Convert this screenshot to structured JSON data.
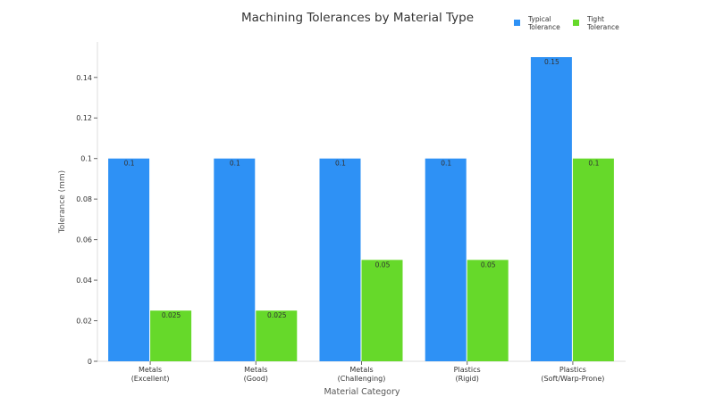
{
  "chart_data": {
    "type": "bar",
    "title": "Machining Tolerances by Material Type",
    "xlabel": "Material Category",
    "ylabel": "Tolerance (mm)",
    "categories": [
      [
        "Metals",
        "(Excellent)"
      ],
      [
        "Metals",
        "(Good)"
      ],
      [
        "Metals",
        "(Challenging)"
      ],
      [
        "Plastics",
        "(Rigid)"
      ],
      [
        "Plastics",
        "(Soft/Warp-Prone)"
      ]
    ],
    "series": [
      {
        "name": "Typical Tolerance",
        "legend_lines": [
          "Typical",
          "Tolerance"
        ],
        "color": "#2e91f5",
        "values": [
          0.1,
          0.1,
          0.1,
          0.1,
          0.15
        ],
        "labels": [
          "0.1",
          "0.1",
          "0.1",
          "0.1",
          "0.15"
        ]
      },
      {
        "name": "Tight Tolerance",
        "legend_lines": [
          "Tight",
          "Tolerance"
        ],
        "color": "#66d92a",
        "values": [
          0.025,
          0.025,
          0.05,
          0.05,
          0.1
        ],
        "labels": [
          "0.025",
          "0.025",
          "0.05",
          "0.05",
          "0.1"
        ]
      }
    ],
    "yticks": [
      0,
      0.02,
      0.04,
      0.06,
      0.08,
      0.1,
      0.12,
      0.14
    ],
    "ytick_labels": [
      "0",
      "0.02",
      "0.04",
      "0.06",
      "0.08",
      "0.1",
      "0.12",
      "0.14"
    ],
    "ylim": [
      0,
      0.1575
    ],
    "grid": false,
    "legend_position": "top-right"
  }
}
